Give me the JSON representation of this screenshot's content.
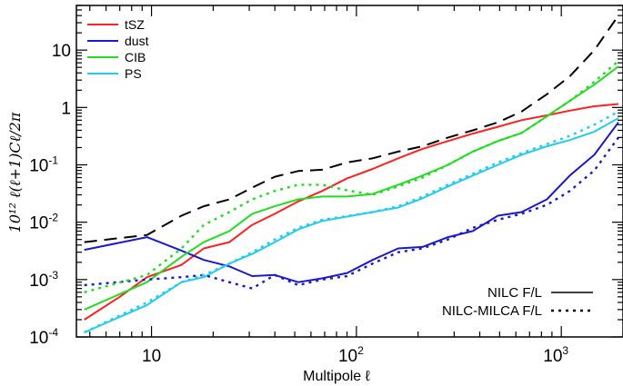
{
  "chart_data": {
    "type": "line",
    "xscale": "log",
    "yscale": "log",
    "xlim": [
      4.3,
      2000
    ],
    "ylim": [
      0.0001,
      60
    ],
    "xlabel": "Multipole ℓ",
    "ylabel": "10¹² ℓ(ℓ+1)Cℓ/2π",
    "x_ticks": [
      {
        "value": 10,
        "base": "10",
        "exp": ""
      },
      {
        "value": 100,
        "base": "10",
        "exp": "2"
      },
      {
        "value": 1000,
        "base": "10",
        "exp": "3"
      }
    ],
    "y_ticks": [
      {
        "value": 0.0001,
        "base": "10",
        "exp": "-4"
      },
      {
        "value": 0.001,
        "base": "10",
        "exp": "-3"
      },
      {
        "value": 0.01,
        "base": "10",
        "exp": "-2"
      },
      {
        "value": 0.1,
        "base": "10",
        "exp": "-1"
      },
      {
        "value": 1,
        "base": "1",
        "exp": ""
      },
      {
        "value": 10,
        "base": "10",
        "exp": ""
      }
    ],
    "legend": {
      "placement": "top-left",
      "entries": [
        "tSZ",
        "dust",
        "CIB",
        "PS"
      ]
    },
    "style_legend": {
      "placement": "bottom-right",
      "entries": [
        {
          "label": "NILC F/L",
          "dash": "solid"
        },
        {
          "label": "NILC-MILCA F/L",
          "dash": "dotted"
        }
      ]
    },
    "series": [
      {
        "name": "",
        "color": "#000000",
        "dash": "dashed",
        "x": [
          4.7,
          9.5,
          14,
          18,
          24,
          31,
          40,
          52,
          68,
          90,
          120,
          160,
          210,
          280,
          370,
          490,
          640,
          850,
          1100,
          1450,
          1900
        ],
        "y": [
          0.0045,
          0.006,
          0.013,
          0.019,
          0.025,
          0.04,
          0.062,
          0.078,
          0.082,
          0.11,
          0.13,
          0.17,
          0.21,
          0.3,
          0.4,
          0.55,
          0.85,
          1.7,
          3.5,
          10,
          40
        ]
      },
      {
        "name": "tSZ",
        "color": "#ff2020",
        "dash": "solid",
        "x": [
          4.7,
          7,
          9.5,
          14,
          18,
          24,
          31,
          40,
          52,
          68,
          90,
          120,
          160,
          210,
          280,
          370,
          490,
          640,
          850,
          1100,
          1450,
          1900
        ],
        "y": [
          0.0002,
          0.0005,
          0.0011,
          0.0018,
          0.0035,
          0.0045,
          0.009,
          0.014,
          0.023,
          0.035,
          0.058,
          0.085,
          0.13,
          0.19,
          0.26,
          0.35,
          0.46,
          0.6,
          0.73,
          0.88,
          1.05,
          1.15
        ]
      },
      {
        "name": "dust",
        "color": "#1a1acc",
        "dash": "solid",
        "x": [
          4.7,
          9.5,
          14,
          18,
          24,
          31,
          40,
          52,
          68,
          90,
          120,
          160,
          210,
          280,
          370,
          490,
          640,
          850,
          1100,
          1450,
          1900
        ],
        "y": [
          0.0033,
          0.0055,
          0.0032,
          0.0022,
          0.0017,
          0.00115,
          0.0012,
          0.0009,
          0.00105,
          0.0013,
          0.0022,
          0.0035,
          0.0037,
          0.0055,
          0.007,
          0.013,
          0.015,
          0.025,
          0.065,
          0.15,
          0.55
        ]
      },
      {
        "name": "CIB",
        "color": "#22dd22",
        "dash": "solid",
        "x": [
          4.7,
          9.5,
          14,
          18,
          24,
          31,
          40,
          52,
          68,
          90,
          120,
          160,
          210,
          280,
          370,
          490,
          640,
          850,
          1100,
          1450,
          1900
        ],
        "y": [
          0.0003,
          0.0009,
          0.0025,
          0.0045,
          0.007,
          0.014,
          0.019,
          0.025,
          0.028,
          0.028,
          0.031,
          0.045,
          0.065,
          0.1,
          0.17,
          0.26,
          0.36,
          0.7,
          1.3,
          2.5,
          5.2
        ]
      },
      {
        "name": "PS",
        "color": "#22ccee",
        "dash": "solid",
        "x": [
          4.7,
          9.5,
          14,
          18,
          24,
          31,
          40,
          52,
          68,
          90,
          120,
          160,
          210,
          280,
          370,
          490,
          640,
          850,
          1100,
          1450,
          1900
        ],
        "y": [
          0.00012,
          0.00036,
          0.0009,
          0.0011,
          0.0019,
          0.0028,
          0.0045,
          0.0075,
          0.0105,
          0.0125,
          0.015,
          0.018,
          0.026,
          0.042,
          0.065,
          0.1,
          0.15,
          0.21,
          0.27,
          0.38,
          0.65
        ]
      },
      {
        "name": "",
        "color": "#1a1acc",
        "dash": "dotted",
        "x": [
          4.7,
          9.5,
          14,
          18,
          24,
          31,
          40,
          52,
          68,
          90,
          120,
          160,
          210,
          280,
          370,
          490,
          640,
          850,
          1100,
          1450,
          1900
        ],
        "y": [
          0.0008,
          0.001,
          0.0011,
          0.0012,
          0.0009,
          0.0007,
          0.0012,
          0.0008,
          0.001,
          0.00115,
          0.0019,
          0.003,
          0.0035,
          0.005,
          0.008,
          0.011,
          0.014,
          0.02,
          0.035,
          0.08,
          0.3
        ]
      },
      {
        "name": "",
        "color": "#22dd22",
        "dash": "dotted",
        "x": [
          4.7,
          9.5,
          14,
          18,
          24,
          31,
          40,
          52,
          68,
          90,
          120,
          160,
          210,
          280,
          370,
          490,
          640,
          850,
          1100,
          1450,
          1900
        ],
        "y": [
          0.0006,
          0.0012,
          0.0035,
          0.009,
          0.015,
          0.025,
          0.035,
          0.045,
          0.045,
          0.036,
          0.03,
          0.042,
          0.06,
          0.1,
          0.17,
          0.26,
          0.36,
          0.7,
          1.3,
          2.8,
          6.5
        ]
      },
      {
        "name": "",
        "color": "#22ccee",
        "dash": "dotted",
        "x": [
          4.7,
          9.5,
          14,
          18,
          24,
          31,
          40,
          52,
          68,
          90,
          120,
          160,
          210,
          280,
          370,
          490,
          640,
          850,
          1100,
          1450,
          1900
        ],
        "y": [
          0.00012,
          0.0004,
          0.0009,
          0.0012,
          0.0019,
          0.003,
          0.005,
          0.008,
          0.011,
          0.0128,
          0.015,
          0.019,
          0.028,
          0.045,
          0.07,
          0.11,
          0.16,
          0.23,
          0.32,
          0.5,
          0.85
        ]
      }
    ]
  }
}
